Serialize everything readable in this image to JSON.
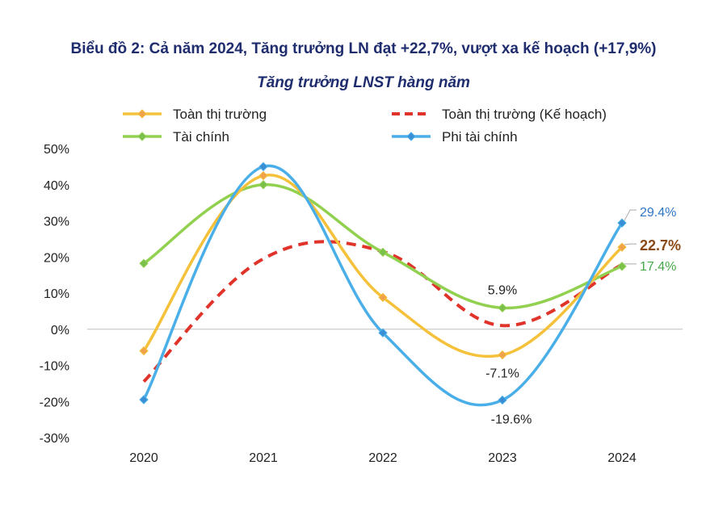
{
  "chart_data": {
    "type": "line",
    "title": "Biểu đồ 2: Cả năm 2024, Tăng trưởng LN đạt +22,7%, vượt xa kế hoạch (+17,9%)",
    "subtitle": "Tăng trưởng LNST hàng năm",
    "xlabel": "",
    "ylabel": "",
    "ylim": [
      -30,
      50
    ],
    "yticks": [
      "50%",
      "40%",
      "30%",
      "20%",
      "10%",
      "0%",
      "-10%",
      "-20%",
      "-30%"
    ],
    "ytick_values": [
      50,
      40,
      30,
      20,
      10,
      0,
      -10,
      -20,
      -30
    ],
    "categories": [
      "2020",
      "2021",
      "2022",
      "2023",
      "2024"
    ],
    "legend_position": "top",
    "series": [
      {
        "name": "Toàn thị trường",
        "values": [
          -6.0,
          42.5,
          8.8,
          -7.1,
          22.7
        ],
        "color": "#f5c13b",
        "marker_color": "#f0a24a",
        "dashed": false,
        "markers": true
      },
      {
        "name": "Toàn thị trường (Kế hoạch)",
        "values": [
          -14.5,
          19.5,
          21.5,
          1.0,
          17.9
        ],
        "color": "#e0342b",
        "dashed": true,
        "markers": false
      },
      {
        "name": "Tài chính",
        "values": [
          18.2,
          40.0,
          21.3,
          5.9,
          17.4
        ],
        "color": "#92d050",
        "marker_color": "#7cc04c",
        "dashed": false,
        "markers": true
      },
      {
        "name": "Phi tài chính",
        "values": [
          -19.5,
          45.0,
          -1.0,
          -19.6,
          29.4
        ],
        "color": "#4aaee8",
        "marker_color": "#3a8fd4",
        "dashed": false,
        "markers": true
      }
    ],
    "annotations": [
      {
        "text": "5.9%",
        "series": "Tài chính",
        "category": "2023",
        "color": "#222222",
        "bold": false
      },
      {
        "text": "-7.1%",
        "series": "Toàn thị trường",
        "category": "2023",
        "color": "#222222",
        "bold": false
      },
      {
        "text": "-19.6%",
        "series": "Phi tài chính",
        "category": "2023",
        "color": "#222222",
        "bold": false
      },
      {
        "text": "29.4%",
        "series": "Phi tài chính",
        "category": "2024",
        "color": "#2e75c4",
        "bold": false
      },
      {
        "text": "22.7%",
        "series": "Toàn thị trường",
        "category": "2024",
        "color": "#8a4a17",
        "bold": true
      },
      {
        "text": "17.4%",
        "series": "Tài chính",
        "category": "2024",
        "color": "#46a84a",
        "bold": false
      }
    ]
  }
}
